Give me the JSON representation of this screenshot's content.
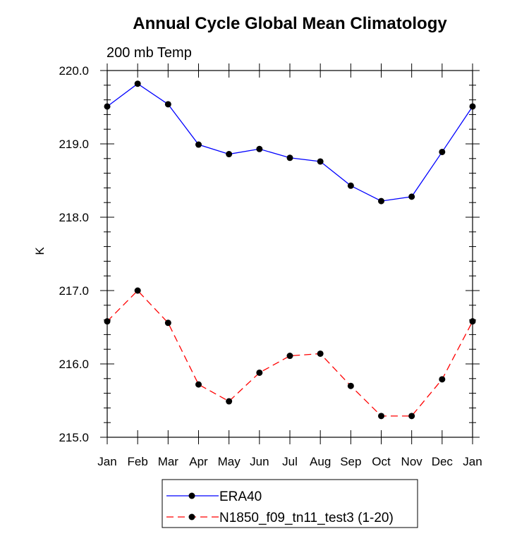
{
  "chart_data": {
    "type": "line",
    "title": "Annual Cycle Global Mean Climatology",
    "subtitle": "200 mb Temp",
    "xlabel": "",
    "ylabel": "K",
    "categories": [
      "Jan",
      "Feb",
      "Mar",
      "Apr",
      "May",
      "Jun",
      "Jul",
      "Aug",
      "Sep",
      "Oct",
      "Nov",
      "Dec",
      "Jan"
    ],
    "ylim": [
      215.0,
      220.0
    ],
    "yticks": [
      "215.0",
      "216.0",
      "217.0",
      "218.0",
      "219.0",
      "220.0"
    ],
    "grid": false,
    "legend_position": "bottom-center",
    "series": [
      {
        "name": "ERA40",
        "color": "#0000ff",
        "dash": "solid",
        "values": [
          219.51,
          219.82,
          219.54,
          218.99,
          218.86,
          218.93,
          218.81,
          218.76,
          218.43,
          218.22,
          218.28,
          218.89,
          219.51
        ]
      },
      {
        "name": "N1850_f09_tn11_test3 (1-20)",
        "color": "#ff0000",
        "dash": "dashed",
        "values": [
          216.58,
          217.0,
          216.56,
          215.72,
          215.49,
          215.88,
          216.11,
          216.14,
          215.7,
          215.29,
          215.29,
          215.79,
          216.58
        ]
      }
    ]
  }
}
